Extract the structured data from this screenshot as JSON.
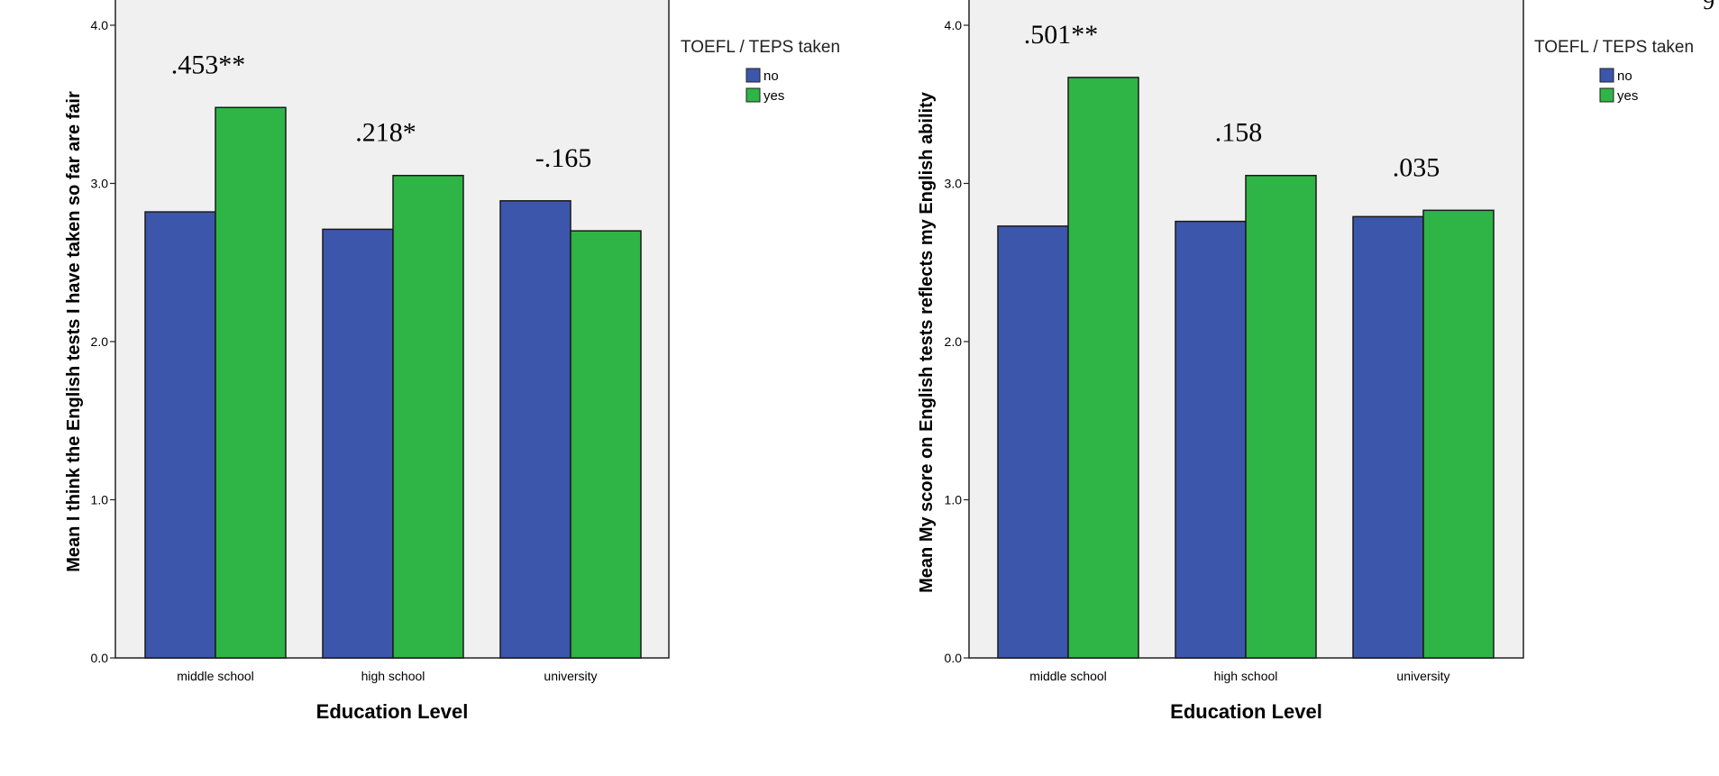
{
  "corner_text": "9",
  "chart_data": [
    {
      "type": "bar",
      "categories": [
        "middle school",
        "high school",
        "university"
      ],
      "series": [
        {
          "name": "no",
          "values": [
            2.82,
            2.71,
            2.89
          ],
          "color": "#3c56ac"
        },
        {
          "name": "yes",
          "values": [
            3.48,
            3.05,
            2.7
          ],
          "color": "#2fb446"
        }
      ],
      "annotations": [
        ".453**",
        ".218*",
        "-.165"
      ],
      "xlabel": "Education Level",
      "ylabel": "Mean I think the English tests I have taken so far are fair",
      "ylim": [
        0,
        4.0
      ],
      "yticks": [
        "0.0",
        "1.0",
        "2.0",
        "3.0",
        "4.0"
      ],
      "legend_title": "TOEFL / TEPS taken",
      "legend_position": "top-right, outside"
    },
    {
      "type": "bar",
      "categories": [
        "middle school",
        "high school",
        "university"
      ],
      "series": [
        {
          "name": "no",
          "values": [
            2.73,
            2.76,
            2.79
          ],
          "color": "#3c56ac"
        },
        {
          "name": "yes",
          "values": [
            3.67,
            3.05,
            2.83
          ],
          "color": "#2fb446"
        }
      ],
      "annotations": [
        ".501**",
        ".158",
        ".035"
      ],
      "xlabel": "Education Level",
      "ylabel": "Mean My score on English tests reflects my English ability",
      "ylim": [
        0,
        4.0
      ],
      "yticks": [
        "0.0",
        "1.0",
        "2.0",
        "3.0",
        "4.0"
      ],
      "legend_title": "TOEFL / TEPS taken",
      "legend_position": "top-right, outside"
    }
  ]
}
